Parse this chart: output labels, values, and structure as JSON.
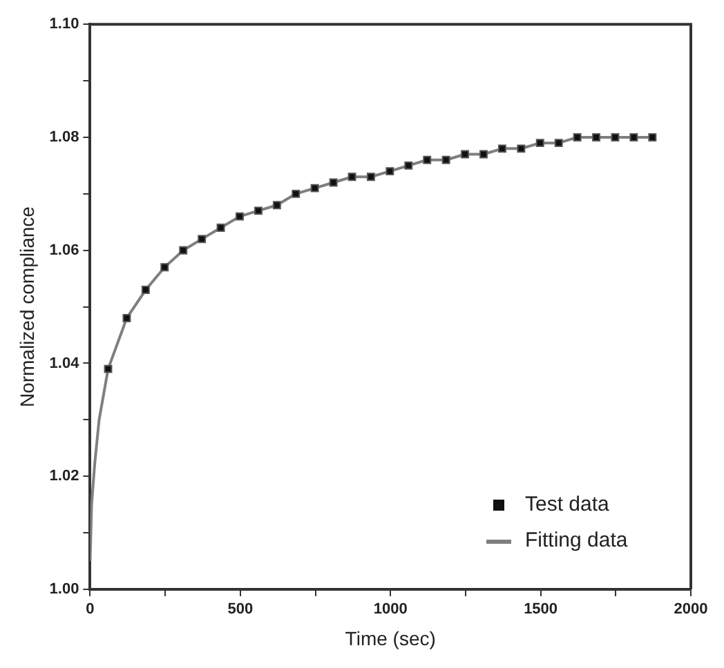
{
  "chart_data": {
    "type": "scatter",
    "xlabel": "Time (sec)",
    "ylabel": "Normalized compliance",
    "xlim": [
      0,
      2000
    ],
    "ylim": [
      1.0,
      1.1
    ],
    "xticks": [
      0,
      {
        "value": 250,
        "label": null
      },
      500,
      {
        "value": 750,
        "label": null
      },
      1000,
      {
        "value": 1250,
        "label": null
      },
      1500,
      {
        "value": 1750,
        "label": null
      },
      2000
    ],
    "yticks": [
      {
        "value": 1.0,
        "label": "1.00"
      },
      {
        "value": 1.01,
        "label": null
      },
      {
        "value": 1.02,
        "label": "1.02"
      },
      {
        "value": 1.03,
        "label": null
      },
      {
        "value": 1.04,
        "label": "1.04"
      },
      {
        "value": 1.05,
        "label": null
      },
      {
        "value": 1.06,
        "label": "1.06"
      },
      {
        "value": 1.07,
        "label": null
      },
      {
        "value": 1.08,
        "label": "1.08"
      },
      {
        "value": 1.09,
        "label": null
      },
      {
        "value": 1.1,
        "label": "1.10"
      }
    ],
    "grid": false,
    "legend": "bottom right",
    "series": [
      {
        "name": "Test data",
        "color": "#111111",
        "marker": "square",
        "x": [
          60,
          122,
          185,
          248,
          310,
          372,
          435,
          498,
          560,
          622,
          685,
          748,
          810,
          872,
          935,
          998,
          1060,
          1122,
          1185,
          1248,
          1310,
          1372,
          1435,
          1498,
          1560,
          1622,
          1685,
          1748,
          1810,
          1872
        ],
        "values": [
          1.039,
          1.048,
          1.053,
          1.057,
          1.06,
          1.062,
          1.064,
          1.066,
          1.067,
          1.068,
          1.07,
          1.071,
          1.072,
          1.073,
          1.073,
          1.074,
          1.075,
          1.076,
          1.076,
          1.077,
          1.077,
          1.078,
          1.078,
          1.079,
          1.079,
          1.08,
          1.08,
          1.08,
          1.08,
          1.08
        ]
      },
      {
        "name": "Fitting data",
        "type": "line",
        "color": "#7f7f7f",
        "marker": "none",
        "line_style": "solid",
        "x": [
          0,
          5,
          15,
          30,
          60,
          122,
          185,
          248,
          310,
          372,
          435,
          498,
          560,
          622,
          685,
          748,
          810,
          872,
          935,
          998,
          1060,
          1122,
          1185,
          1248,
          1310,
          1372,
          1435,
          1498,
          1560,
          1622,
          1685,
          1748,
          1810,
          1872
        ],
        "values": [
          1.005,
          1.015,
          1.022,
          1.03,
          1.039,
          1.048,
          1.053,
          1.057,
          1.06,
          1.062,
          1.064,
          1.066,
          1.067,
          1.068,
          1.07,
          1.071,
          1.072,
          1.073,
          1.073,
          1.074,
          1.075,
          1.076,
          1.076,
          1.077,
          1.077,
          1.078,
          1.078,
          1.079,
          1.079,
          1.08,
          1.08,
          1.08,
          1.08,
          1.08
        ]
      }
    ]
  }
}
